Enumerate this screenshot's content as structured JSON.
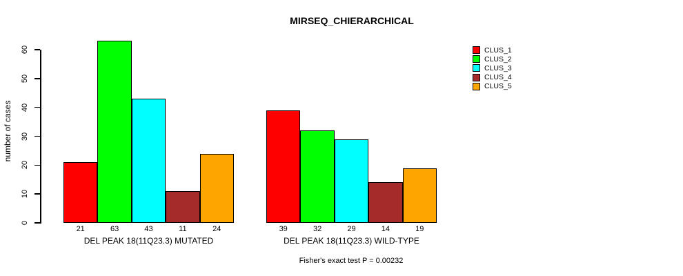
{
  "chart_data": {
    "type": "bar",
    "title": "MIRSEQ_CHIERARCHICAL",
    "ylabel": "number of cases",
    "xlabel": "",
    "ylim": [
      0,
      63
    ],
    "yticks": [
      0,
      10,
      20,
      30,
      40,
      50,
      60
    ],
    "grid": false,
    "bar_value_labels": true,
    "legend_position": "top-right-outside",
    "categories": [
      "DEL PEAK 18(11Q23.3) MUTATED",
      "DEL PEAK 18(11Q23.3) WILD-TYPE"
    ],
    "series": [
      {
        "name": "CLUS_1",
        "color": "#FF0000",
        "values": [
          21,
          39
        ]
      },
      {
        "name": "CLUS_2",
        "color": "#00FF00",
        "values": [
          63,
          32
        ]
      },
      {
        "name": "CLUS_3",
        "color": "#00FFFF",
        "values": [
          43,
          29
        ]
      },
      {
        "name": "CLUS_4",
        "color": "#A52A2A",
        "values": [
          11,
          14
        ]
      },
      {
        "name": "CLUS_5",
        "color": "#FFA500",
        "values": [
          24,
          19
        ]
      }
    ],
    "annotation": "Fisher's exact test P = 0.00232"
  }
}
